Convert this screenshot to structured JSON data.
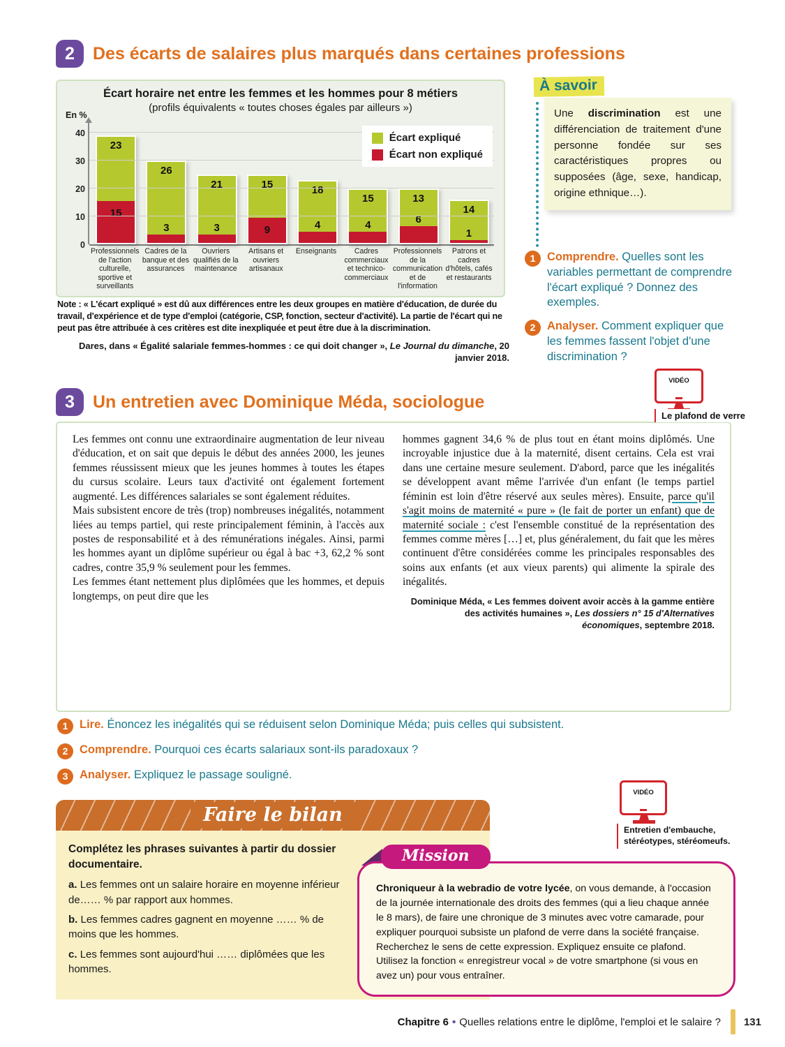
{
  "section2": {
    "number": "2",
    "title": "Des écarts de salaires plus marqués dans certaines professions",
    "note": "Note : « L'écart expliqué » est dû aux différences entre les deux groupes en matière d'éducation, de durée du travail, d'expérience et de type d'emploi (catégorie, CSP, fonction, secteur d'activité). La partie de l'écart qui ne peut pas être attribuée à ces critères est dite inexpliquée et peut être due à la discrimination.",
    "source_plain": "Dares, dans « Égalité salariale femmes-hommes : ce qui doit changer », ",
    "source_italic": "Le Journal du dimanche",
    "source_end": ", 20 janvier 2018."
  },
  "chart_data": {
    "type": "bar",
    "stacked": true,
    "title": "Écart horaire net entre les femmes et les hommes pour 8 métiers",
    "subtitle": "(profils équivalents « toutes choses égales par ailleurs »)",
    "unit_label": "En %",
    "ylim": [
      0,
      40
    ],
    "yticks": [
      0,
      10,
      20,
      30,
      40
    ],
    "grid": true,
    "legend_position": "top-right",
    "categories": [
      "Professionnels de l'action culturelle, sportive et surveillants",
      "Cadres de la banque et des assurances",
      "Ouvriers qualifiés de la maintenance",
      "Artisans et ouvriers artisanaux",
      "Enseignants",
      "Cadres commerciaux et technico-commerciaux",
      "Professionnels de la communication et de l'information",
      "Patrons et cadres d'hôtels, cafés et restaurants"
    ],
    "series": [
      {
        "name": "Écart expliqué",
        "color": "#b5c92f",
        "values": [
          23,
          26,
          21,
          15,
          18,
          15,
          13,
          14
        ]
      },
      {
        "name": "Écart non expliqué",
        "color": "#c51a2e",
        "values": [
          15,
          3,
          3,
          9,
          4,
          4,
          6,
          1
        ]
      }
    ]
  },
  "a_savoir": {
    "label": "À savoir",
    "text_before": "Une ",
    "term": "discrimination",
    "text_after": " est une différenciation de traitement d'une personne fondée sur ses caractéristiques propres ou supposées (âge, sexe, handicap, origine ethnique…)."
  },
  "doc2": {
    "questions": [
      {
        "num": "1",
        "verb": "Comprendre.",
        "text": "Quelles sont les variables permettant de comprendre l'écart expliqué ? Donnez des exemples."
      },
      {
        "num": "2",
        "verb": "Analyser.",
        "text": "Comment expliquer que les femmes fassent l'objet d'une discrimination ?"
      }
    ]
  },
  "video1": {
    "label": "VIDÉO",
    "caption": "Le plafond de verre"
  },
  "section3": {
    "number": "3",
    "title": "Un entretien avec Dominique Méda, sociologue",
    "left_p1": "Les femmes ont connu une extraordinaire augmentation de leur niveau d'éducation, et on sait que depuis le début des années 2000, les jeunes femmes réussissent mieux que les jeunes hommes à toutes les étapes du cursus scolaire. Leurs taux d'activité ont également fortement augmenté. Les différences salariales se sont également réduites.",
    "left_p2": "Mais subsistent encore de très (trop) nombreuses inégalités, notamment liées au temps partiel, qui reste principalement féminin, à l'accès aux postes de responsabilité et à des rémunérations inégales. Ainsi, parmi les hommes ayant un diplôme supérieur ou égal à bac +3, 62,2 % sont cadres, contre 35,9 % seulement pour les femmes.",
    "left_p3": "Les femmes étant nettement plus diplômées que les hommes, et depuis longtemps, on peut dire que les",
    "right_r1": "hommes gagnent 34,6 % de plus tout en étant moins diplômés. Une incroyable injustice due à la maternité, disent certains. Cela est vrai dans une certaine mesure seulement. D'abord, parce que les inégalités se développent avant même l'arrivée d'un enfant (le temps partiel féminin est loin d'être réservé aux seules mères). Ensuite, ",
    "right_r2": "parce qu'il s'agit moins de maternité « pure » (le fait de porter un enfant) que de maternité sociale :",
    "right_r3": " c'est l'ensemble constitué de la représentation des femmes comme mères […] et, plus généralement, du fait que les mères continuent d'être considérées comme les principales responsables des soins aux enfants (et aux vieux parents) qui alimente la spirale des inégalités.",
    "source_plain": "Dominique Méda, « Les femmes doivent avoir accès à la gamme entière des activités humaines », ",
    "source_italic": "Les dossiers n° 15 d'Alternatives économiques",
    "source_end": ", septembre 2018."
  },
  "doc3": {
    "questions": [
      {
        "num": "1",
        "verb": "Lire.",
        "text": "Énoncez les inégalités qui se réduisent selon Dominique Méda; puis celles qui subsistent."
      },
      {
        "num": "2",
        "verb": "Comprendre.",
        "text": "Pourquoi ces écarts salariaux sont-ils paradoxaux ?"
      },
      {
        "num": "3",
        "verb": "Analyser.",
        "text": "Expliquez le passage souligné."
      }
    ]
  },
  "bilan": {
    "banner": "Faire le bilan",
    "intro": "Complétez les phrases suivantes à partir du dossier documentaire.",
    "items": [
      {
        "letter": "a.",
        "text": "Les femmes ont un salaire horaire en moyenne inférieur de…… % par rapport aux hommes."
      },
      {
        "letter": "b.",
        "text": "Les femmes cadres gagnent en moyenne …… % de moins que les hommes."
      },
      {
        "letter": "c.",
        "text": "Les femmes sont aujourd'hui …… diplômées que les hommes."
      }
    ]
  },
  "mission": {
    "label": "Mission",
    "lead": "Chroniqueur à la webradio de votre lycée",
    "text": ", on vous demande, à l'occasion de la journée internationale des droits des femmes (qui a lieu chaque année le 8 mars), de faire une chronique de 3 minutes avec votre camarade, pour expliquer pourquoi subsiste un plafond de verre dans la société française. Recherchez le sens de cette expression. Expliquez ensuite ce plafond. Utilisez la fonction « enregistreur vocal » de votre smartphone (si vous en avez un) pour vous entraîner."
  },
  "video2": {
    "label": "VIDÉO",
    "caption": "Entretien d'embauche, stéréotypes, stéréomeufs."
  },
  "footer": {
    "chapter": "Chapitre 6",
    "bullet": "•",
    "title": "Quelles relations entre le diplôme, l'emploi et le salaire ?",
    "page": "131"
  }
}
